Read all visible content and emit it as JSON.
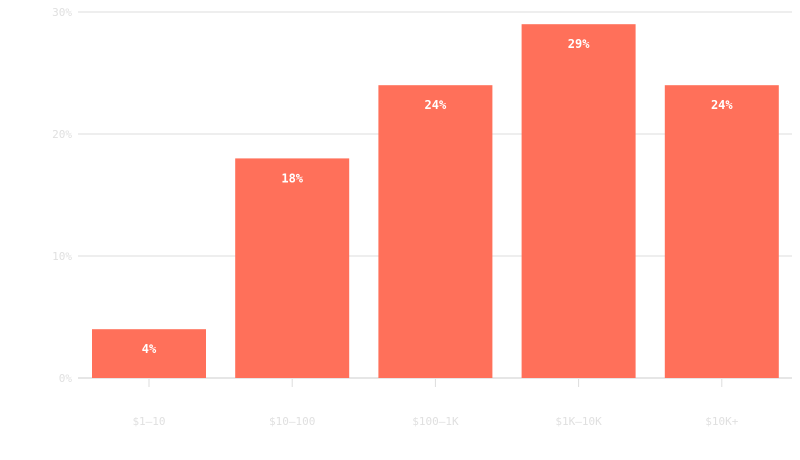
{
  "chart_data": {
    "type": "bar",
    "categories": [
      "$1–10",
      "$10–100",
      "$100–1K",
      "$1K–10K",
      "$10K+"
    ],
    "values": [
      4,
      18,
      24,
      29,
      24
    ],
    "data_labels": [
      "4%",
      "18%",
      "24%",
      "29%",
      "24%"
    ],
    "y_ticks": [
      0,
      10,
      20,
      30
    ],
    "y_tick_labels": [
      "0%",
      "10%",
      "20%",
      "30%"
    ],
    "ylim": [
      0,
      30
    ],
    "grid": true,
    "legend": false,
    "colors": {
      "bar": "#ff705a"
    }
  }
}
